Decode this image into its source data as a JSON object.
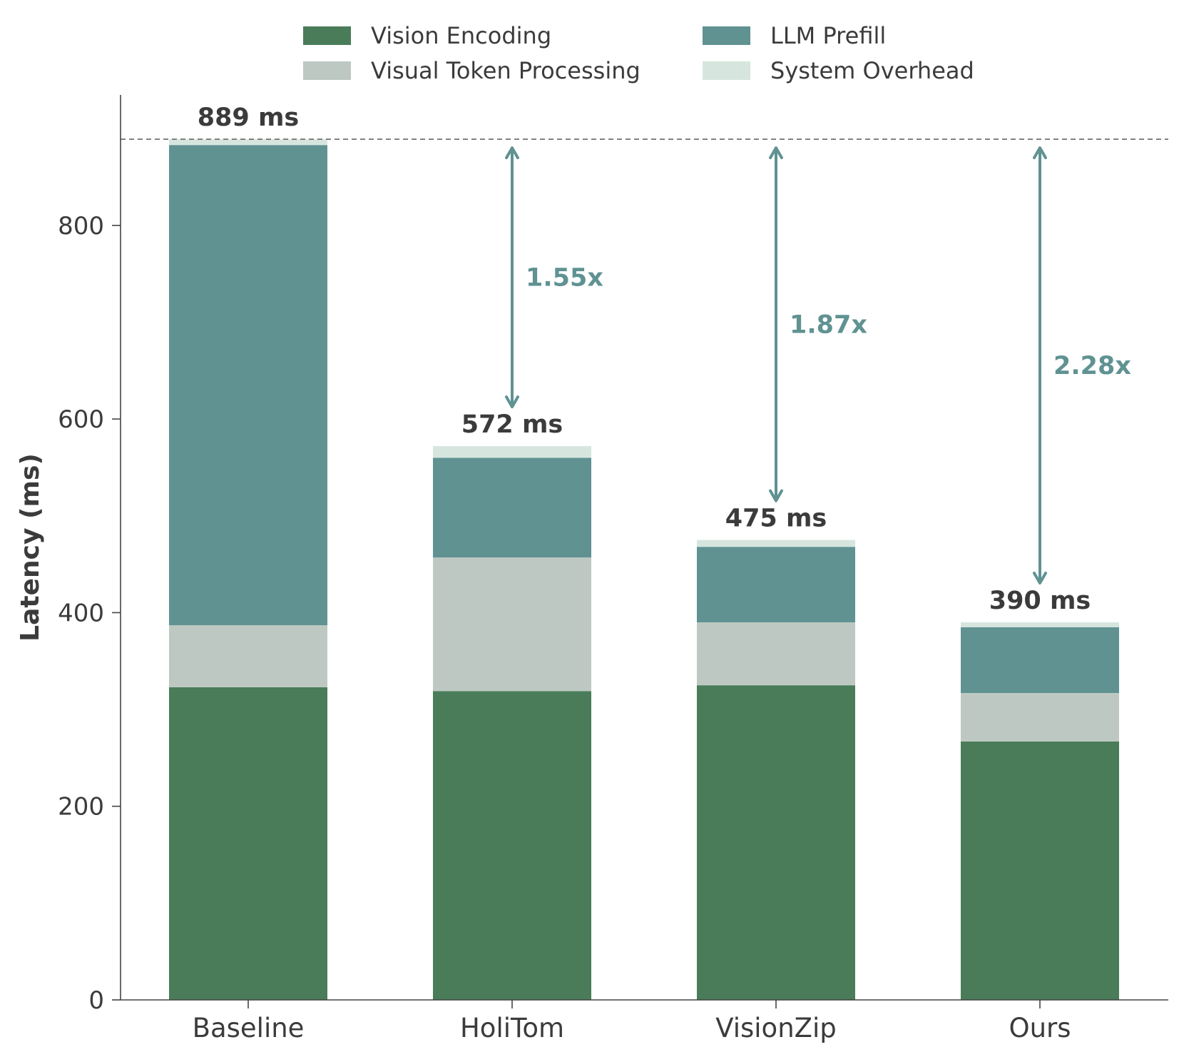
{
  "chart_data": {
    "type": "bar",
    "stacked": true,
    "categories": [
      "Baseline",
      "HoliTom",
      "VisionZip",
      "Ours"
    ],
    "series": [
      {
        "name": "Vision Encoding",
        "values": [
          323,
          319,
          325,
          267
        ],
        "color": "#4a7c59"
      },
      {
        "name": "Visual Token Processing",
        "values": [
          64,
          138,
          65,
          50
        ],
        "color": "#bec8c2"
      },
      {
        "name": "LLM Prefill",
        "values": [
          496,
          103,
          78,
          68
        ],
        "color": "#609292"
      },
      {
        "name": "System Overhead",
        "values": [
          6,
          12,
          7,
          5
        ],
        "color": "#d6e6de"
      }
    ],
    "totals": [
      889,
      572,
      475,
      390
    ],
    "total_labels": [
      "889 ms",
      "572 ms",
      "475 ms",
      "390 ms"
    ],
    "speedups": [
      {
        "category": "HoliTom",
        "label": "1.55x"
      },
      {
        "category": "VisionZip",
        "label": "1.87x"
      },
      {
        "category": "Ours",
        "label": "2.28x"
      }
    ],
    "reference_line": 889,
    "ylabel": "Latency (ms)",
    "xlabel": "",
    "ylim": [
      0,
      930
    ],
    "yticks": [
      0,
      200,
      400,
      600,
      800
    ],
    "grid": false,
    "legend_position": "top-center",
    "accent_color": "#609292",
    "text_color": "#3b3b3b"
  }
}
